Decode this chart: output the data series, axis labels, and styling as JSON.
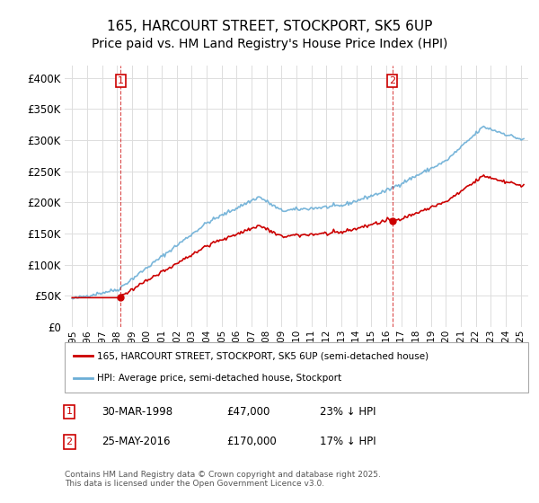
{
  "title": "165, HARCOURT STREET, STOCKPORT, SK5 6UP",
  "subtitle": "Price paid vs. HM Land Registry's House Price Index (HPI)",
  "ylabel": "",
  "ylim": [
    0,
    420000
  ],
  "yticks": [
    0,
    50000,
    100000,
    150000,
    200000,
    250000,
    300000,
    350000,
    400000
  ],
  "ytick_labels": [
    "£0",
    "£50K",
    "£100K",
    "£150K",
    "£200K",
    "£250K",
    "£300K",
    "£350K",
    "£400K"
  ],
  "hpi_color": "#6baed6",
  "price_color": "#cc0000",
  "marker1_date_idx": 36,
  "marker2_date_idx": 246,
  "marker1_label": "1",
  "marker2_label": "2",
  "legend_line1": "165, HARCOURT STREET, STOCKPORT, SK5 6UP (semi-detached house)",
  "legend_line2": "HPI: Average price, semi-detached house, Stockport",
  "table_row1": [
    "1",
    "30-MAR-1998",
    "£47,000",
    "23% ↓ HPI"
  ],
  "table_row2": [
    "2",
    "25-MAY-2016",
    "£170,000",
    "17% ↓ HPI"
  ],
  "footnote": "Contains HM Land Registry data © Crown copyright and database right 2025.\nThis data is licensed under the Open Government Licence v3.0.",
  "background_color": "#ffffff",
  "grid_color": "#dddddd",
  "title_fontsize": 11,
  "subtitle_fontsize": 10
}
